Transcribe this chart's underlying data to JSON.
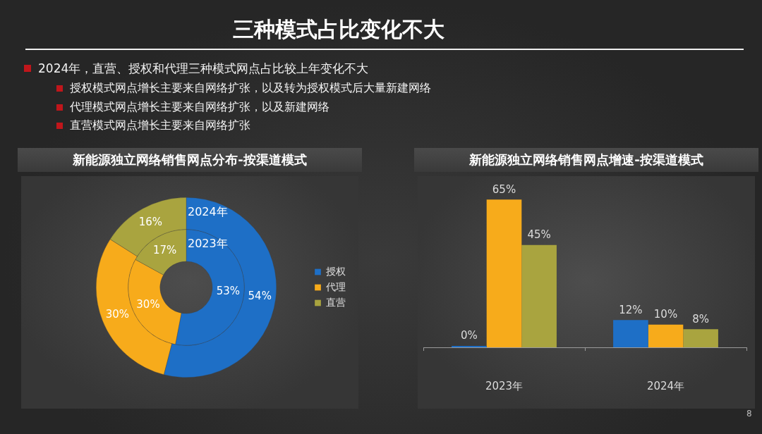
{
  "chart_data": [
    {
      "type": "other",
      "title": "三种模式占比变化不大",
      "subtitle": "2024年，直营、授权和代理三种模式网点占比较上年变化不大",
      "annotations": [
        "授权模式网点增长主要来自网络扩张，以及转为授权模式后大量新建网络",
        "代理模式网点增长主要来自网络扩张，以及新建网络",
        "直营模式网点增长主要来自网络扩张",
        "8"
      ]
    },
    {
      "type": "donut",
      "title": "新能源独立网络销售网点分布-按渠道模式",
      "categories": [
        "授权",
        "代理",
        "直营"
      ],
      "colors": [
        "#1e6fc6",
        "#f7ab1b",
        "#a9a43f"
      ],
      "series": [
        {
          "name": "2024年",
          "values": [
            54,
            30,
            16
          ],
          "value_labels": [
            "54%",
            "30%",
            "16%"
          ]
        },
        {
          "name": "2023年",
          "values": [
            53,
            30,
            17
          ],
          "value_labels": [
            "53%",
            "30%",
            "17%"
          ]
        }
      ],
      "legend": "right"
    },
    {
      "type": "bar",
      "title": "新能源独立网络销售网点增速-按渠道模式",
      "categories": [
        "2023年",
        "2024年"
      ],
      "series": [
        {
          "color": "#1e6fc6",
          "values": [
            0,
            12
          ],
          "value_labels": [
            "0%",
            "12%"
          ]
        },
        {
          "color": "#f7ab1b",
          "values": [
            65,
            10
          ],
          "value_labels": [
            "65%",
            "10%"
          ]
        },
        {
          "color": "#a9a43f",
          "values": [
            45,
            8
          ],
          "value_labels": [
            "45%",
            "8%"
          ]
        }
      ],
      "tick_labels": "x"
    }
  ]
}
